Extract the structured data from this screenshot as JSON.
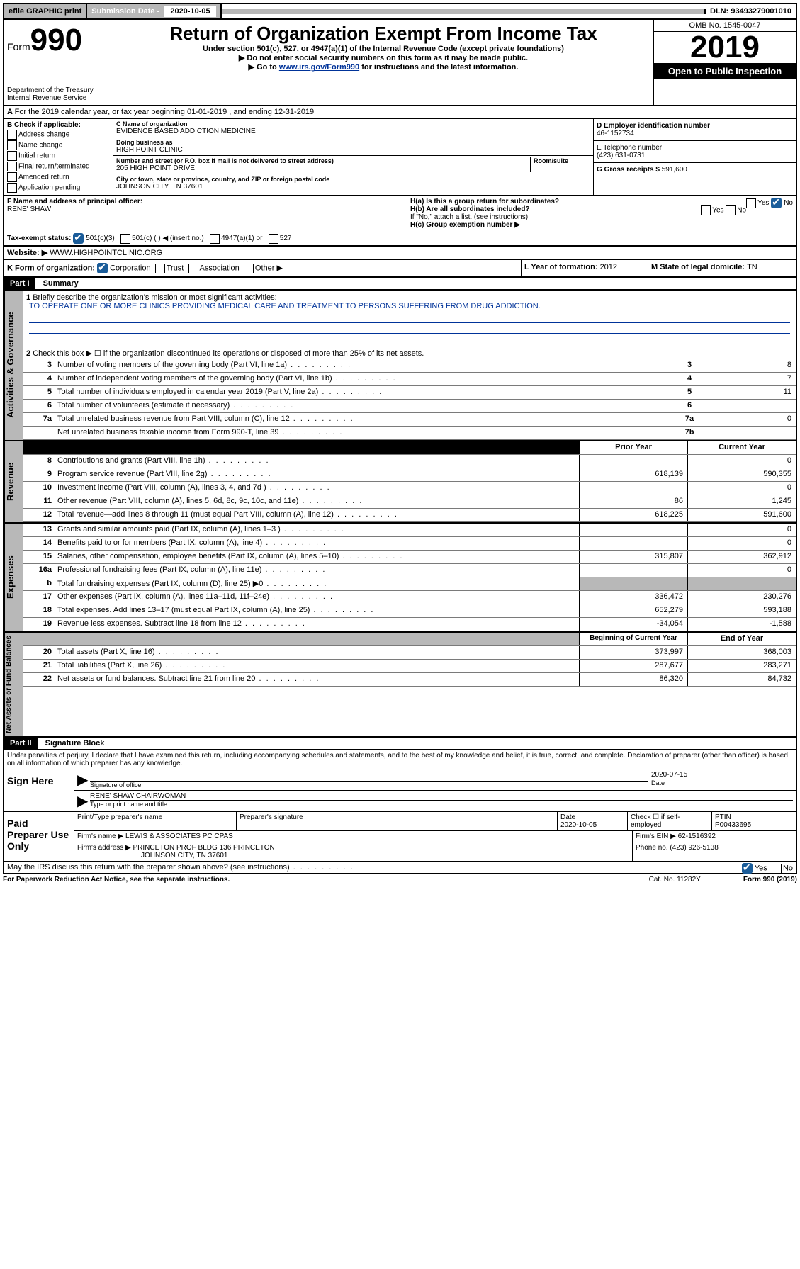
{
  "topbar": {
    "efile": "efile GRAPHIC print",
    "subdate_label": "Submission Date - ",
    "subdate": "2020-10-05",
    "dln": "DLN: 93493279001010"
  },
  "header": {
    "form_label": "Form",
    "form_num": "990",
    "dept": "Department of the Treasury",
    "irs": "Internal Revenue Service",
    "title": "Return of Organization Exempt From Income Tax",
    "sub1": "Under section 501(c), 527, or 4947(a)(1) of the Internal Revenue Code (except private foundations)",
    "sub2": "▶ Do not enter social security numbers on this form as it may be made public.",
    "sub3a": "▶ Go to ",
    "sub3link": "www.irs.gov/Form990",
    "sub3b": " for instructions and the latest information.",
    "omb": "OMB No. 1545-0047",
    "year": "2019",
    "open": "Open to Public Inspection"
  },
  "lineA": "For the 2019 calendar year, or tax year beginning 01-01-2019    , and ending 12-31-2019",
  "sectionB": {
    "label": "B Check if applicable:",
    "items": [
      "Address change",
      "Name change",
      "Initial return",
      "Final return/terminated",
      "Amended return",
      "Application pending"
    ]
  },
  "sectionC": {
    "name_lbl": "C Name of organization",
    "name": "EVIDENCE BASED ADDICTION MEDICINE",
    "dba_lbl": "Doing business as",
    "dba": "HIGH POINT CLINIC",
    "addr_lbl": "Number and street (or P.O. box if mail is not delivered to street address)",
    "room_lbl": "Room/suite",
    "addr": "205 HIGH POINT DRIVE",
    "city_lbl": "City or town, state or province, country, and ZIP or foreign postal code",
    "city": "JOHNSON CITY, TN   37601"
  },
  "sectionD": {
    "lbl": "D Employer identification number",
    "val": "46-1152734"
  },
  "sectionE": {
    "lbl": "E Telephone number",
    "val": "(423) 631-0731"
  },
  "sectionG": {
    "lbl": "G Gross receipts $ ",
    "val": "591,600"
  },
  "sectionF": {
    "lbl": "F  Name and address of principal officer:",
    "val": "RENE' SHAW"
  },
  "sectionH": {
    "a": "H(a)  Is this a group return for subordinates?",
    "b": "H(b)  Are all subordinates included?",
    "bnote": "If \"No,\" attach a list. (see instructions)",
    "c": "H(c)  Group exemption number ▶"
  },
  "sectionI": {
    "lbl": "Tax-exempt status:",
    "opts": [
      "501(c)(3)",
      "501(c) (  ) ◀ (insert no.)",
      "4947(a)(1) or",
      "527"
    ]
  },
  "sectionJ": {
    "lbl": "Website: ▶",
    "val": "WWW.HIGHPOINTCLINIC.ORG"
  },
  "sectionK": {
    "lbl": "K Form of organization:",
    "opts": [
      "Corporation",
      "Trust",
      "Association",
      "Other ▶"
    ]
  },
  "sectionL": {
    "lbl": "L Year of formation: ",
    "val": "2012"
  },
  "sectionM": {
    "lbl": "M State of legal domicile: ",
    "val": "TN"
  },
  "parts": {
    "p1": "Part I",
    "p1t": "Summary",
    "p2": "Part II",
    "p2t": "Signature Block"
  },
  "summary": {
    "q1": "Briefly describe the organization's mission or most significant activities:",
    "mission": "TO OPERATE ONE OR MORE CLINICS PROVIDING MEDICAL CARE AND TREATMENT TO PERSONS SUFFERING FROM DRUG ADDICTION.",
    "q2": "Check this box ▶ ☐  if the organization discontinued its operations or disposed of more than 25% of its net assets.",
    "rows_gov": [
      {
        "n": "3",
        "t": "Number of voting members of the governing body (Part VI, line 1a)",
        "box": "3",
        "v": "8"
      },
      {
        "n": "4",
        "t": "Number of independent voting members of the governing body (Part VI, line 1b)",
        "box": "4",
        "v": "7"
      },
      {
        "n": "5",
        "t": "Total number of individuals employed in calendar year 2019 (Part V, line 2a)",
        "box": "5",
        "v": "11"
      },
      {
        "n": "6",
        "t": "Total number of volunteers (estimate if necessary)",
        "box": "6",
        "v": ""
      },
      {
        "n": "7a",
        "t": "Total unrelated business revenue from Part VIII, column (C), line 12",
        "box": "7a",
        "v": "0"
      },
      {
        "n": "",
        "t": "Net unrelated business taxable income from Form 990-T, line 39",
        "box": "7b",
        "v": ""
      }
    ],
    "col_prior": "Prior Year",
    "col_curr": "Current Year",
    "rows_rev": [
      {
        "n": "8",
        "t": "Contributions and grants (Part VIII, line 1h)",
        "p": "",
        "c": "0"
      },
      {
        "n": "9",
        "t": "Program service revenue (Part VIII, line 2g)",
        "p": "618,139",
        "c": "590,355"
      },
      {
        "n": "10",
        "t": "Investment income (Part VIII, column (A), lines 3, 4, and 7d )",
        "p": "",
        "c": "0"
      },
      {
        "n": "11",
        "t": "Other revenue (Part VIII, column (A), lines 5, 6d, 8c, 9c, 10c, and 11e)",
        "p": "86",
        "c": "1,245"
      },
      {
        "n": "12",
        "t": "Total revenue—add lines 8 through 11 (must equal Part VIII, column (A), line 12)",
        "p": "618,225",
        "c": "591,600"
      }
    ],
    "rows_exp": [
      {
        "n": "13",
        "t": "Grants and similar amounts paid (Part IX, column (A), lines 1–3 )",
        "p": "",
        "c": "0"
      },
      {
        "n": "14",
        "t": "Benefits paid to or for members (Part IX, column (A), line 4)",
        "p": "",
        "c": "0"
      },
      {
        "n": "15",
        "t": "Salaries, other compensation, employee benefits (Part IX, column (A), lines 5–10)",
        "p": "315,807",
        "c": "362,912"
      },
      {
        "n": "16a",
        "t": "Professional fundraising fees (Part IX, column (A), line 11e)",
        "p": "",
        "c": "0"
      },
      {
        "n": "b",
        "t": "Total fundraising expenses (Part IX, column (D), line 25) ▶0",
        "p": "",
        "c": "",
        "grey": true
      },
      {
        "n": "17",
        "t": "Other expenses (Part IX, column (A), lines 11a–11d, 11f–24e)",
        "p": "336,472",
        "c": "230,276"
      },
      {
        "n": "18",
        "t": "Total expenses. Add lines 13–17 (must equal Part IX, column (A), line 25)",
        "p": "652,279",
        "c": "593,188"
      },
      {
        "n": "19",
        "t": "Revenue less expenses. Subtract line 18 from line 12",
        "p": "-34,054",
        "c": "-1,588"
      }
    ],
    "col_beg": "Beginning of Current Year",
    "col_end": "End of Year",
    "rows_net": [
      {
        "n": "20",
        "t": "Total assets (Part X, line 16)",
        "p": "373,997",
        "c": "368,003"
      },
      {
        "n": "21",
        "t": "Total liabilities (Part X, line 26)",
        "p": "287,677",
        "c": "283,271"
      },
      {
        "n": "22",
        "t": "Net assets or fund balances. Subtract line 21 from line 20",
        "p": "86,320",
        "c": "84,732"
      }
    ]
  },
  "sidelabels": {
    "gov": "Activities & Governance",
    "rev": "Revenue",
    "exp": "Expenses",
    "net": "Net Assets or Fund Balances"
  },
  "sig": {
    "decl": "Under penalties of perjury, I declare that I have examined this return, including accompanying schedules and statements, and to the best of my knowledge and belief, it is true, correct, and complete. Declaration of preparer (other than officer) is based on all information of which preparer has any knowledge.",
    "sign_lbl": "Sign Here",
    "sig_officer": "Signature of officer",
    "date": "2020-07-15",
    "date_lbl": "Date",
    "name": "RENE' SHAW CHAIRWOMAN",
    "name_lbl": "Type or print name and title",
    "paid_lbl": "Paid Preparer Use Only",
    "prep_name_lbl": "Print/Type preparer's name",
    "prep_sig_lbl": "Preparer's signature",
    "prep_date_lbl": "Date",
    "prep_date": "2020-10-05",
    "check_lbl": "Check ☐ if self-employed",
    "ptin_lbl": "PTIN",
    "ptin": "P00433695",
    "firm_lbl": "Firm's name    ▶",
    "firm": "LEWIS & ASSOCIATES PC CPAS",
    "ein_lbl": "Firm's EIN ▶",
    "ein": "62-1516392",
    "addr_lbl": "Firm's address ▶",
    "addr": "PRINCETON PROF BLDG 136 PRINCETON",
    "addr2": "JOHNSON CITY, TN   37601",
    "phone_lbl": "Phone no. ",
    "phone": "(423) 926-5138",
    "discuss": "May the IRS discuss this return with the preparer shown above? (see instructions)"
  },
  "footer": {
    "left": "For Paperwork Reduction Act Notice, see the separate instructions.",
    "mid": "Cat. No. 11282Y",
    "right": "Form 990 (2019)"
  },
  "yesno": {
    "yes": "Yes",
    "no": "No"
  }
}
